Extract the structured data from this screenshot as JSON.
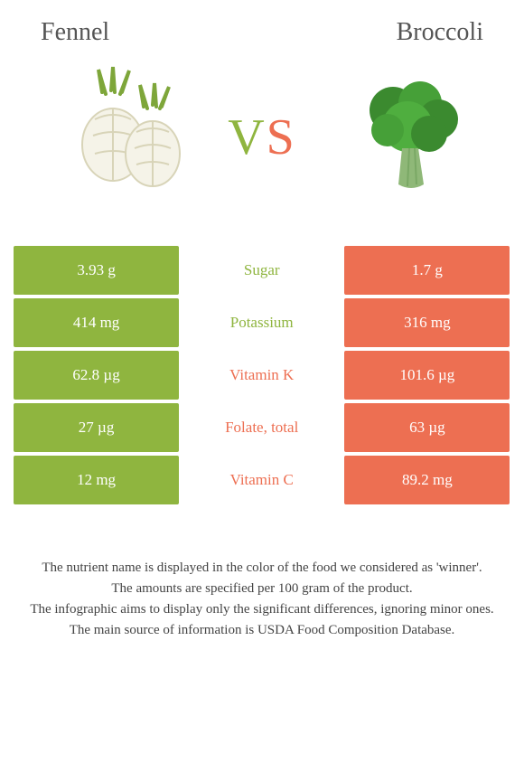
{
  "foods": {
    "left": {
      "name": "Fennel",
      "color": "#8fb53f"
    },
    "right": {
      "name": "Broccoli",
      "color": "#ed6f52"
    }
  },
  "vs": {
    "v": "V",
    "s": "S"
  },
  "comparison_table": {
    "type": "table",
    "left_bg": "#8fb53f",
    "right_bg": "#ed6f52",
    "left_text": "#ffffff",
    "right_text": "#ffffff",
    "rows": [
      {
        "left": "3.93 g",
        "label": "Sugar",
        "right": "1.7 g",
        "winner": "left"
      },
      {
        "left": "414 mg",
        "label": "Potassium",
        "right": "316 mg",
        "winner": "left"
      },
      {
        "left": "62.8 µg",
        "label": "Vitamin K",
        "right": "101.6 µg",
        "winner": "right"
      },
      {
        "left": "27 µg",
        "label": "Folate, total",
        "right": "63 µg",
        "winner": "right"
      },
      {
        "left": "12 mg",
        "label": "Vitamin C",
        "right": "89.2 mg",
        "winner": "right"
      }
    ]
  },
  "footnotes": [
    "The nutrient name is displayed in the color of the food we considered as 'winner'.",
    "The amounts are specified per 100 gram of the product.",
    "The infographic aims to display only the significant differences, ignoring minor ones.",
    "The main source of information is USDA Food Composition Database."
  ],
  "colors": {
    "green": "#8fb53f",
    "orange": "#ed6f52",
    "title_text": "#555555",
    "body_text": "#444444",
    "background": "#ffffff"
  },
  "typography": {
    "title_fontsize": 28,
    "vs_fontsize": 56,
    "cell_fontsize": 17,
    "footnote_fontsize": 15
  }
}
